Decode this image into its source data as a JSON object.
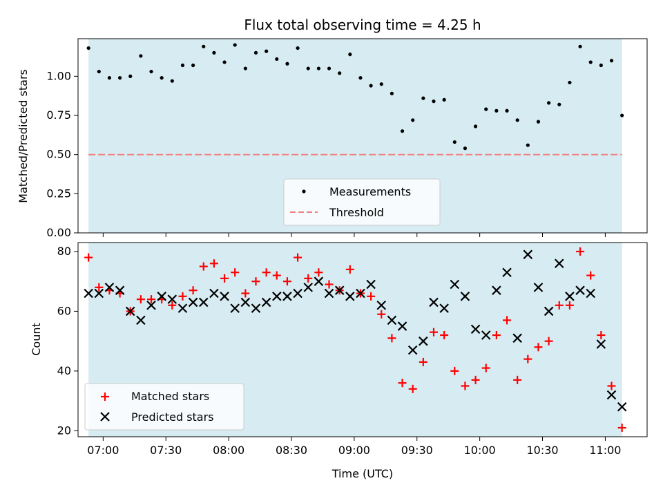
{
  "chart_data": [
    {
      "type": "scatter",
      "title": "Flux total observing time = 4.25 h",
      "ylabel": "Matched/Predicted stars",
      "xlabel": "",
      "xlim": [
        "06:48",
        "11:20"
      ],
      "ylim": [
        0,
        1.24
      ],
      "yticks": [
        "0.00",
        "0.25",
        "0.50",
        "0.75",
        "1.00"
      ],
      "shaded_span": [
        "06:53",
        "11:08"
      ],
      "shaded_color": "#add8e6",
      "threshold": 0.5,
      "legend_position": "lower center",
      "legend": {
        "measurements": "Measurements",
        "threshold": "Threshold"
      },
      "series": [
        {
          "name": "Measurements",
          "color": "#000000",
          "marker": "dot",
          "values": [
            1.18,
            1.03,
            0.99,
            0.99,
            1.0,
            1.13,
            1.03,
            0.99,
            0.97,
            1.07,
            1.07,
            1.19,
            1.15,
            1.09,
            1.2,
            1.05,
            1.15,
            1.16,
            1.11,
            1.08,
            1.18,
            1.05,
            1.05,
            1.05,
            1.02,
            1.14,
            0.99,
            0.94,
            0.95,
            0.89,
            0.65,
            0.72,
            0.86,
            0.84,
            0.85,
            0.58,
            0.54,
            0.68,
            0.79,
            0.78,
            0.78,
            0.72,
            0.56,
            0.71,
            0.83,
            0.82,
            0.96,
            1.19,
            1.09,
            1.07,
            1.1,
            0.75
          ]
        }
      ]
    },
    {
      "type": "scatter",
      "title": "",
      "ylabel": "Count",
      "xlabel": "Time (UTC)",
      "xlim": [
        "06:48",
        "11:20"
      ],
      "ylim": [
        18,
        83
      ],
      "yticks": [
        "20",
        "40",
        "60",
        "80"
      ],
      "xticks": [
        "07:00",
        "07:30",
        "08:00",
        "08:30",
        "09:00",
        "09:30",
        "10:00",
        "10:30",
        "11:00"
      ],
      "shaded_span": [
        "06:53",
        "11:08"
      ],
      "shaded_color": "#add8e6",
      "legend_position": "lower left",
      "series": [
        {
          "name": "Matched stars",
          "color": "#ff0000",
          "marker": "plus",
          "values": [
            78,
            68,
            67,
            66,
            60,
            64,
            64,
            64,
            62,
            65,
            67,
            75,
            76,
            71,
            73,
            66,
            70,
            73,
            72,
            70,
            78,
            71,
            73,
            69,
            67,
            74,
            66,
            65,
            59,
            51,
            36,
            34,
            43,
            53,
            52,
            40,
            35,
            37,
            41,
            52,
            57,
            37,
            44,
            48,
            50,
            62,
            62,
            80,
            72,
            52,
            35,
            21
          ]
        },
        {
          "name": "Predicted stars",
          "color": "#000000",
          "marker": "x",
          "values": [
            66,
            66,
            68,
            67,
            60,
            57,
            62,
            65,
            64,
            61,
            63,
            63,
            66,
            65,
            61,
            63,
            61,
            63,
            65,
            65,
            66,
            68,
            70,
            66,
            67,
            65,
            66,
            69,
            62,
            57,
            55,
            47,
            50,
            63,
            61,
            69,
            65,
            54,
            52,
            67,
            73,
            51,
            79,
            68,
            60,
            76,
            65,
            67,
            66,
            49,
            32,
            28
          ]
        }
      ],
      "x_start": "06:53",
      "x_step_minutes": 5
    }
  ]
}
